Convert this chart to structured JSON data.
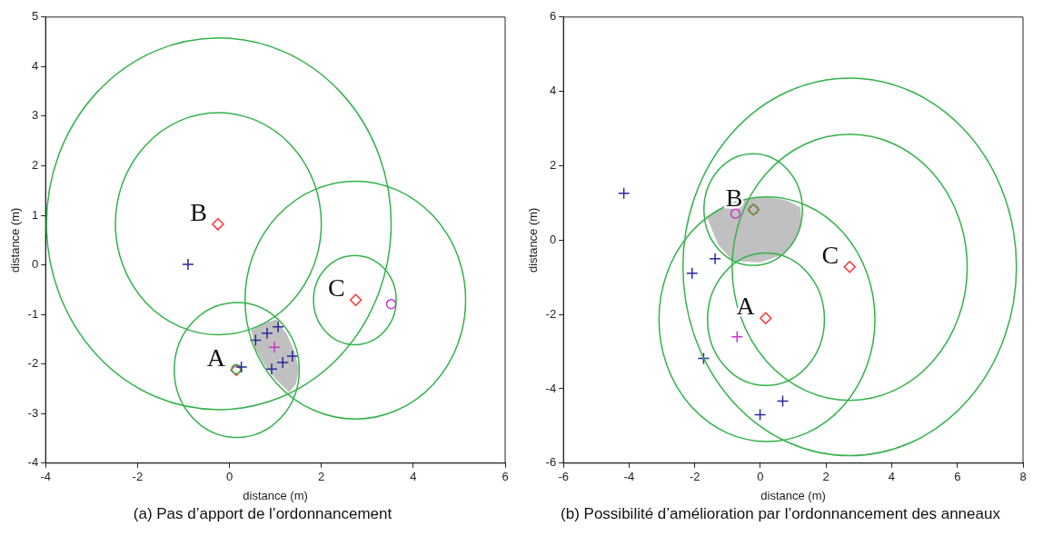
{
  "chart_data": [
    {
      "type": "scatter",
      "xlabel": "distance (m)",
      "ylabel": "distance (m)",
      "xlim": [
        -4,
        6
      ],
      "ylim": [
        -4,
        5
      ],
      "xticks": [
        -4,
        -2,
        0,
        2,
        4,
        6
      ],
      "yticks": [
        -4,
        -3,
        -2,
        -1,
        0,
        1,
        2,
        3,
        4,
        5
      ],
      "grid": false,
      "legend": false,
      "annotations": [
        {
          "text": "B",
          "x": -0.25,
          "y": 0.82
        },
        {
          "text": "C",
          "x": 2.75,
          "y": -0.71
        },
        {
          "text": "A",
          "x": 0.15,
          "y": -2.12
        },
        "(a) Pas d’apport de l’ordonnancement"
      ],
      "series": [
        {
          "type": "area",
          "color": "#c0c0c0",
          "x": [
            0.47,
            0.75,
            1.02,
            1.25,
            1.42,
            1.51,
            1.45,
            1.3,
            1.0,
            0.75,
            0.57,
            0.47
          ],
          "values": [
            -1.32,
            -1.18,
            -1.1,
            -1.4,
            -1.75,
            -2.1,
            -2.4,
            -2.57,
            -2.3,
            -2.0,
            -1.7,
            -1.32
          ]
        },
        {
          "type": "scatter",
          "color": "#ff3333",
          "marker": "diamond",
          "x": [
            -0.25,
            2.75,
            0.15
          ],
          "values": [
            0.82,
            -0.71,
            -2.12
          ]
        },
        {
          "type": "scatter",
          "color": "#cc33cc",
          "marker": "circle",
          "x": [
            3.52
          ],
          "values": [
            -0.79
          ]
        },
        {
          "type": "scatter",
          "color": "#33b24a",
          "marker": "circle",
          "x": [
            0.15
          ],
          "values": [
            -2.1
          ]
        },
        {
          "type": "scatter",
          "color": "#2a2a9a",
          "marker": "cross",
          "x": [
            -0.9,
            0.26,
            0.57,
            0.82,
            1.06,
            0.92,
            1.16,
            1.37
          ],
          "values": [
            0.01,
            -2.06,
            -1.52,
            -1.38,
            -1.25,
            -2.1,
            -1.97,
            -1.84
          ]
        },
        {
          "type": "scatter",
          "color": "#cc33cc",
          "marker": "cross",
          "x": [
            0.98
          ],
          "values": [
            -1.66
          ]
        }
      ]
    },
    {
      "type": "scatter",
      "xlabel": "distance (m)",
      "ylabel": "distance (m)",
      "xlim": [
        -6,
        8
      ],
      "ylim": [
        -6,
        6
      ],
      "xticks": [
        -6,
        -4,
        -2,
        0,
        2,
        4,
        6,
        8
      ],
      "yticks": [
        -6,
        -4,
        -2,
        0,
        2,
        4,
        6
      ],
      "grid": false,
      "legend": false,
      "annotations": [
        {
          "text": "B",
          "x": -0.21,
          "y": 0.82
        },
        {
          "text": "C",
          "x": 2.72,
          "y": -0.72
        },
        {
          "text": "A",
          "x": 0.16,
          "y": -2.1
        },
        "(b) Possibilité d’amélioration par l’ordonnancement des anneaux"
      ],
      "series": [
        {
          "type": "area",
          "color": "#c0c0c0",
          "x": [
            -1.63,
            -1.0,
            -0.4,
            0.2,
            0.8,
            1.22,
            1.25,
            1.0,
            0.6,
            0.0,
            -0.84,
            -1.3,
            -1.63
          ],
          "values": [
            0.62,
            0.98,
            1.12,
            1.16,
            1.07,
            0.88,
            0.4,
            -0.1,
            -0.42,
            -0.6,
            -0.57,
            -0.1,
            0.62
          ]
        },
        {
          "type": "scatter",
          "color": "#ff3333",
          "marker": "diamond",
          "x": [
            -0.21,
            0.16,
            2.72
          ],
          "values": [
            0.82,
            -2.1,
            -0.72
          ]
        },
        {
          "type": "scatter",
          "color": "#cc33cc",
          "marker": "circle",
          "x": [
            -0.76
          ],
          "values": [
            0.71
          ]
        },
        {
          "type": "scatter",
          "color": "#33b24a",
          "marker": "circle",
          "x": [
            -0.21
          ],
          "values": [
            0.82
          ]
        },
        {
          "type": "scatter",
          "color": "#2a2a9a",
          "marker": "cross",
          "x": [
            -4.16,
            -1.38,
            -2.08,
            -1.73,
            -0.01,
            0.68
          ],
          "values": [
            1.26,
            -0.5,
            -0.89,
            -3.18,
            -4.7,
            -4.33
          ]
        },
        {
          "type": "scatter",
          "color": "#cc33cc",
          "marker": "cross",
          "x": [
            -0.71
          ],
          "values": [
            -2.6
          ]
        }
      ]
    }
  ]
}
